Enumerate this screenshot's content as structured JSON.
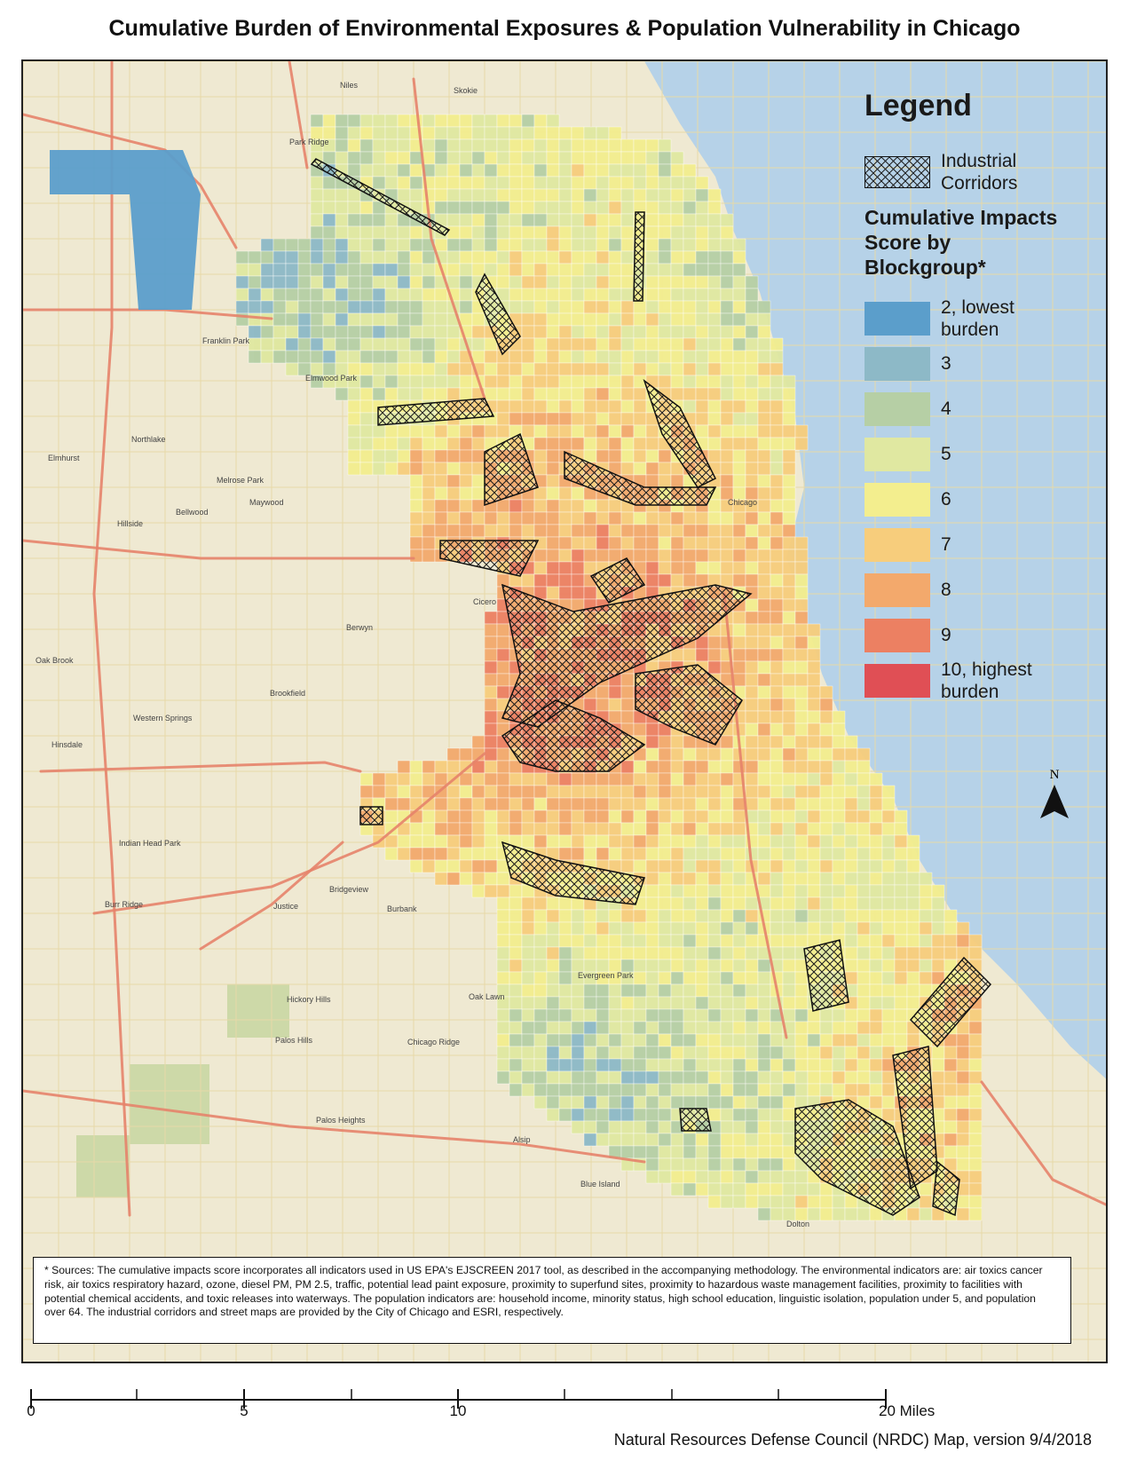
{
  "title": "Cumulative Burden of Environmental Exposures & Population Vulnerability in Chicago",
  "legend": {
    "heading": "Legend",
    "industrial_label_line1": "Industrial",
    "industrial_label_line2": "Corridors",
    "score_heading_line1": "Cumulative Impacts",
    "score_heading_line2": "Score by",
    "score_heading_line3": "Blockgroup*",
    "classes": [
      {
        "score": 2,
        "line1": "2, lowest",
        "line2": "burden",
        "color": "#5b9ecb"
      },
      {
        "score": 3,
        "line1": "3",
        "line2": "",
        "color": "#8db9c7"
      },
      {
        "score": 4,
        "line1": "4",
        "line2": "",
        "color": "#b6cfa5"
      },
      {
        "score": 5,
        "line1": "5",
        "line2": "",
        "color": "#e0e8a1"
      },
      {
        "score": 6,
        "line1": "6",
        "line2": "",
        "color": "#f3ee8e"
      },
      {
        "score": 7,
        "line1": "7",
        "line2": "",
        "color": "#f7cd7c"
      },
      {
        "score": 8,
        "line1": "8",
        "line2": "",
        "color": "#f3a96c"
      },
      {
        "score": 9,
        "line1": "9",
        "line2": "",
        "color": "#ec8062"
      },
      {
        "score": 10,
        "line1": "10, highest",
        "line2": "burden",
        "color": "#e04f55"
      }
    ]
  },
  "colors": {
    "lake": "#b6d2e8",
    "basemap": "#efe9d2",
    "highway": "#e5836a",
    "hatch": "#1a1a1a"
  },
  "north_label": "N",
  "footnote": "* Sources: The cumulative impacts score incorporates all indicators used in US EPA's EJSCREEN 2017 tool, as described in the accompanying methodology. The environmental indicators are: air toxics cancer risk, air toxics respiratory hazard, ozone, diesel PM, PM 2.5, traffic, potential lead paint exposure, proximity to superfund sites, proximity to hazardous waste management facilities, proximity to facilities with potential chemical accidents, and toxic releases into waterways. The population indicators are: household income, minority status, high school education, linguistic isolation, population under 5, and population over 64. The industrial corridors and street maps are provided by the City of Chicago and ESRI, respectively.",
  "scale": {
    "labels": [
      "0",
      "5",
      "10"
    ],
    "end_label": "20 Miles"
  },
  "credit": "Natural Resources Defense Council (NRDC) Map, version 9/4/2018",
  "places": [
    "Niles",
    "Skokie",
    "Park Ridge",
    "Franklin Park",
    "Elmwood Park",
    "Northlake",
    "Elmhurst",
    "Melrose Park",
    "Maywood",
    "Hillside",
    "Bellwood",
    "Berwyn",
    "Oak Brook",
    "Brookfield",
    "Western Springs",
    "Hinsdale",
    "Indian Head Park",
    "Burr Ridge",
    "Justice",
    "Bridgeview",
    "Burbank",
    "Hickory Hills",
    "Palos Hills",
    "Chicago Ridge",
    "Oak Lawn",
    "Evergreen Park",
    "Blue Island",
    "Alsip",
    "Palos Heights",
    "Chicago",
    "Cicero",
    "Dolton"
  ]
}
